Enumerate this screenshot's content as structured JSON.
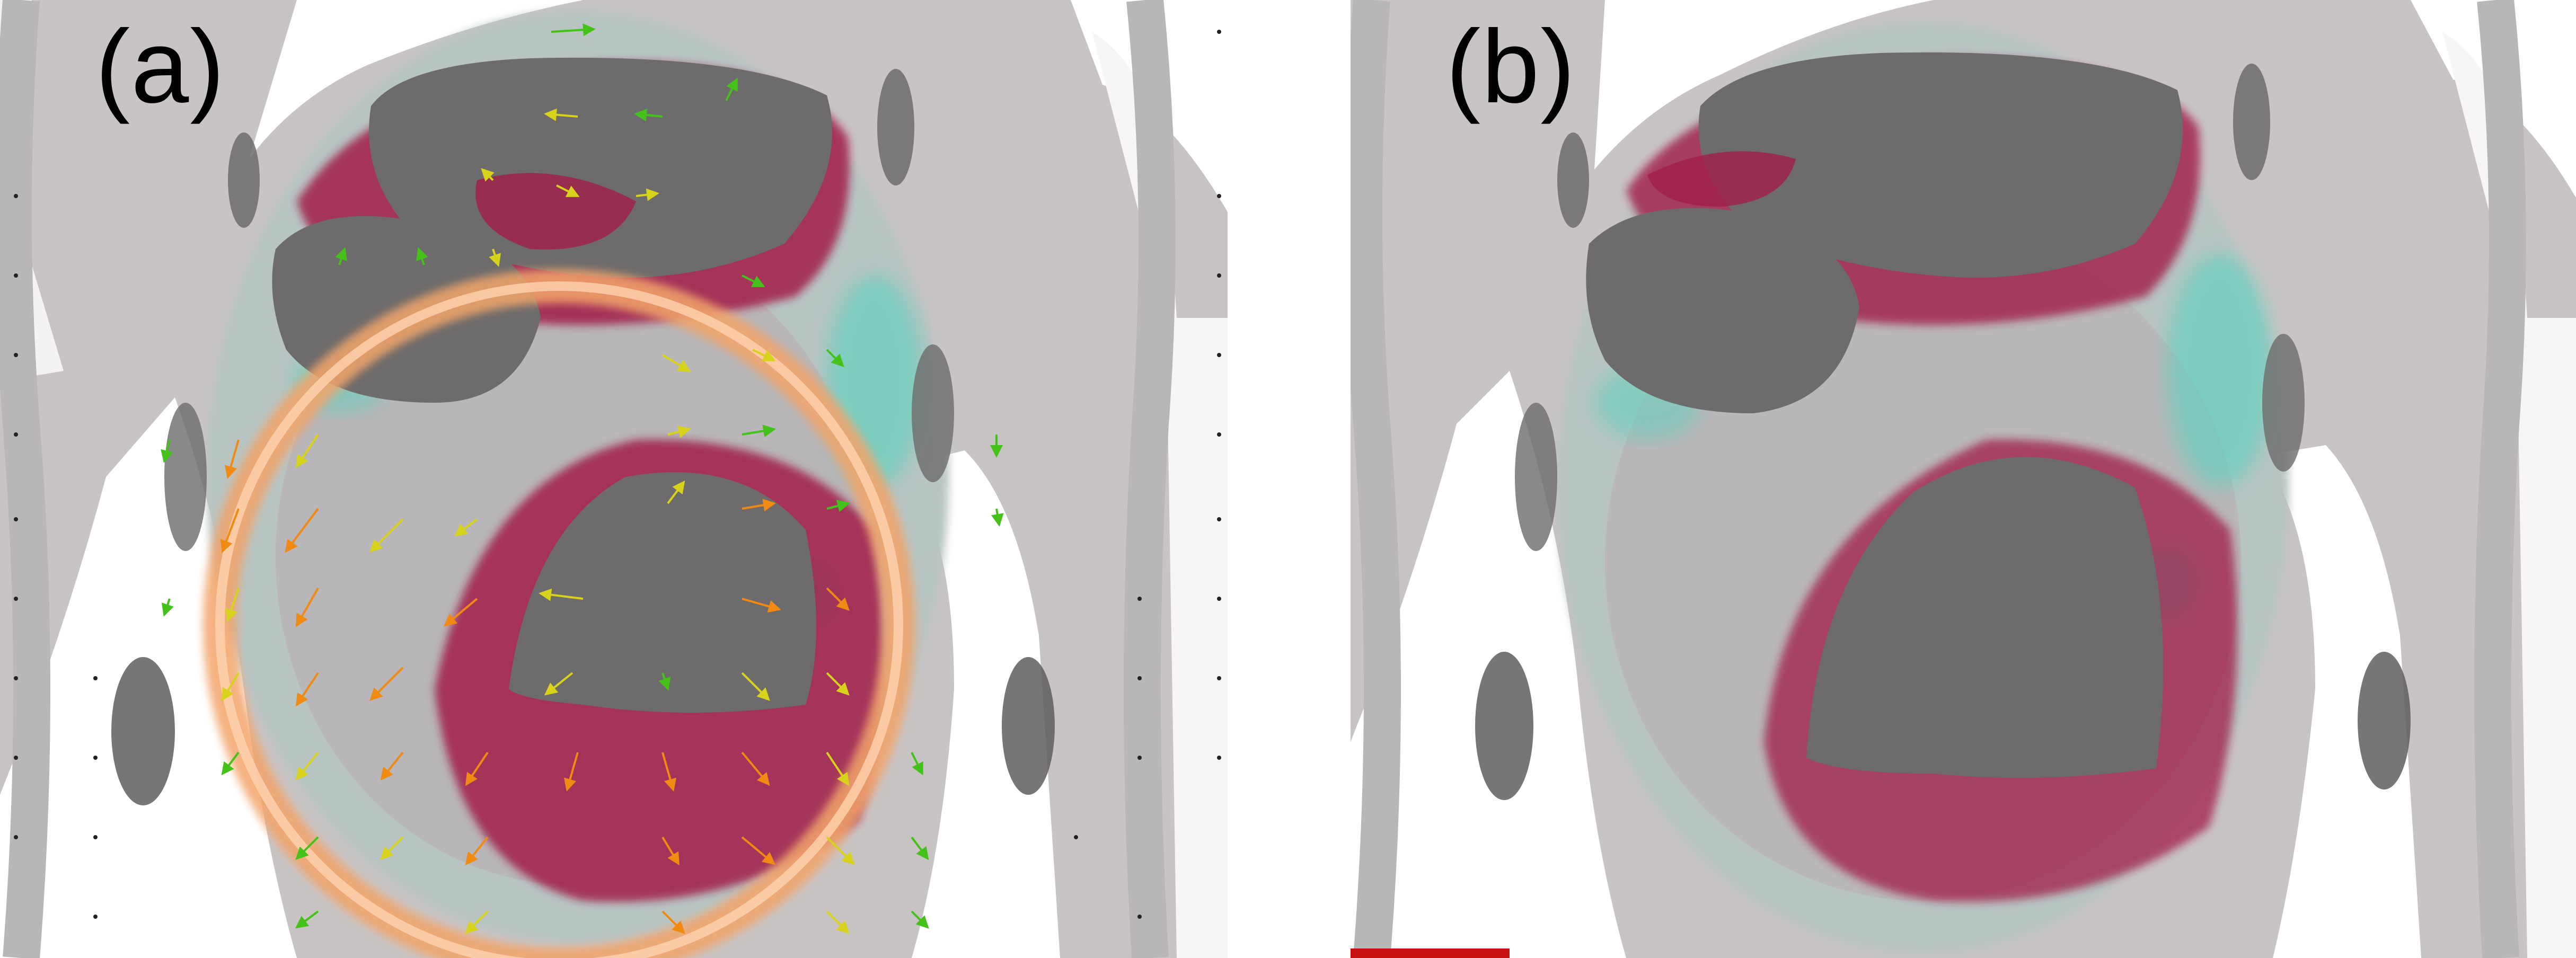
{
  "figure": {
    "panels": [
      {
        "id": "a",
        "label": "(a)",
        "shows_vector_field": true
      },
      {
        "id": "b",
        "label": "(b)",
        "shows_vector_field": false
      }
    ],
    "colors": {
      "background_tissue": "#c9c6c6",
      "air_region": "#6d6b6b",
      "overlay_red": "#a11f4a",
      "overlay_cyan": "#4fd6bd",
      "contour_orange": "#f3a56a",
      "arrow_green": "#44c21a",
      "arrow_yellow": "#d7d21a",
      "arrow_orange": "#f08a12",
      "arrow_black": "#111111"
    }
  }
}
